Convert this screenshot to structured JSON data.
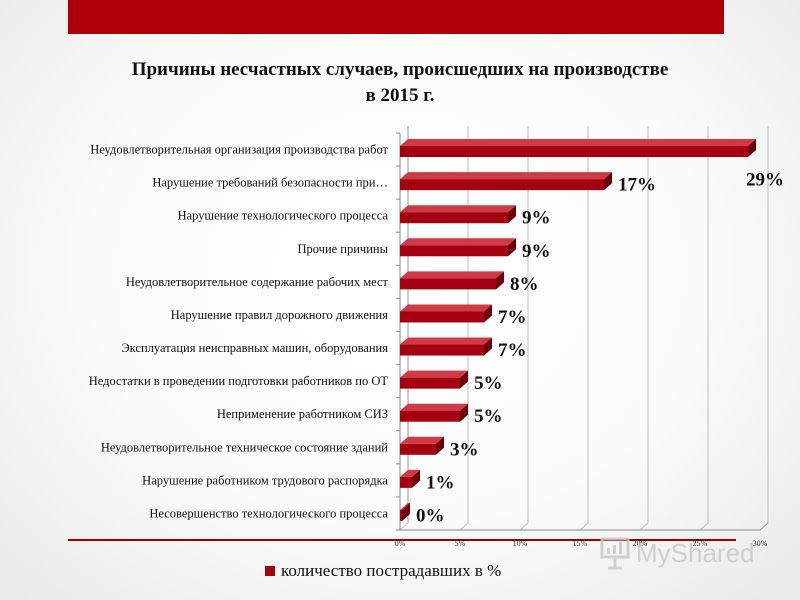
{
  "colors": {
    "top_band": "#b0000a",
    "bar_front": "#a40012",
    "bar_top": "#cf3a44",
    "bar_side": "#6e000a",
    "accent_line": "#a00000"
  },
  "chart_data": {
    "type": "bar",
    "orientation": "horizontal",
    "title_line1": "Причины несчастных случаев, происшедших на производстве",
    "title_line2": "в 2015 г.",
    "categories": [
      "Неудовлетворительная организация производства работ",
      "Нарушение требований безопасности при…",
      "Нарушение технологического процесса",
      "Прочие причины",
      "Неудовлетворительное содержание рабочих мест",
      "Нарушение правил дорожного движения",
      "Эксплуатация неисправных машин, оборудования",
      "Недостатки в проведении подготовки работников по ОТ",
      "Неприменение работником СИЗ",
      "Неудовлетворительное техническое состояние зданий",
      "Нарушение работником трудового распорядка",
      "Несовершенство технологического процесса"
    ],
    "values": [
      29,
      17,
      9,
      9,
      8,
      7,
      7,
      5,
      5,
      3,
      1,
      0
    ],
    "data_labels": [
      "29%",
      "17%",
      "9%",
      "9%",
      "8%",
      "7%",
      "7%",
      "5%",
      "5%",
      "3%",
      "1%",
      "0%"
    ],
    "xlim": [
      0,
      30
    ],
    "x_ticks": [
      "0%",
      "5%",
      "10%",
      "15%",
      "20%",
      "25%",
      "30%"
    ],
    "grid": true,
    "legend": {
      "position": "bottom",
      "entries": [
        "количество пострадавших в %"
      ]
    }
  },
  "watermark": {
    "text": "MyShared",
    "icon": "presentation-icon"
  }
}
